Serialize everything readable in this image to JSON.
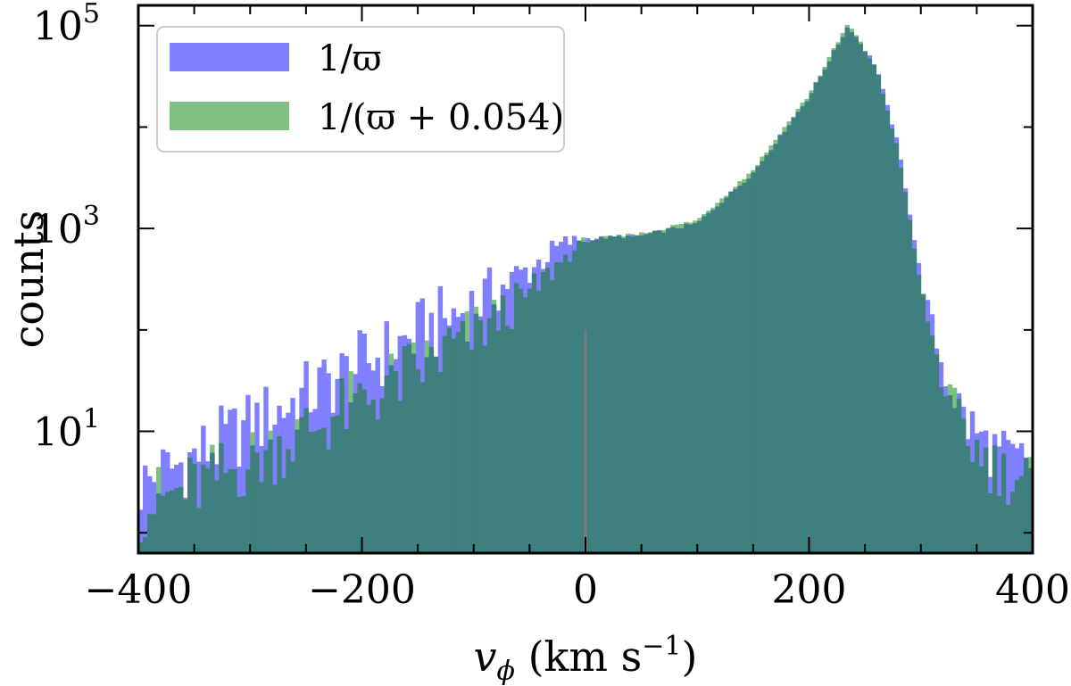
{
  "chart_data": {
    "type": "bar",
    "title": "",
    "xlabel_parts": {
      "main": "v",
      "sub": "ϕ",
      "unit": " (km s",
      "sup": "−1",
      "close": ")"
    },
    "ylabel": "counts",
    "xlim": [
      -400,
      400
    ],
    "ylim_log10": [
      -0.2,
      5.2
    ],
    "y_scale": "log",
    "grid": false,
    "legend_position": "top-left",
    "x_ticks": [
      -400,
      -200,
      0,
      200,
      400
    ],
    "x_tick_labels": [
      "−400",
      "−200",
      "0",
      "200",
      "400"
    ],
    "y_ticks": [
      10,
      1000,
      100000
    ],
    "y_tick_labels": [
      {
        "base": "10",
        "exp": "1"
      },
      {
        "base": "10",
        "exp": "3"
      },
      {
        "base": "10",
        "exp": "5"
      }
    ],
    "bin_width_kmps": 4,
    "series": [
      {
        "name": "1/ϖ",
        "color": "#7f7fff",
        "profile_kmps_log10": [
          [
            -400,
            0.45
          ],
          [
            -350,
            0.75
          ],
          [
            -300,
            1.05
          ],
          [
            -250,
            1.35
          ],
          [
            -200,
            1.65
          ],
          [
            -150,
            1.95
          ],
          [
            -100,
            2.25
          ],
          [
            -50,
            2.6
          ],
          [
            -20,
            2.85
          ],
          [
            0,
            2.9
          ],
          [
            50,
            2.93
          ],
          [
            100,
            3.05
          ],
          [
            150,
            3.55
          ],
          [
            200,
            4.3
          ],
          [
            235,
            5.0
          ],
          [
            260,
            4.6
          ],
          [
            280,
            3.8
          ],
          [
            300,
            2.5
          ],
          [
            320,
            1.6
          ],
          [
            340,
            1.1
          ],
          [
            360,
            0.85
          ],
          [
            380,
            0.7
          ],
          [
            400,
            0.7
          ]
        ]
      },
      {
        "name": "1/(ϖ + 0.054)",
        "color": "#7fbf7f",
        "profile_kmps_log10": [
          [
            -400,
            0.25
          ],
          [
            -350,
            0.45
          ],
          [
            -300,
            0.7
          ],
          [
            -250,
            1.0
          ],
          [
            -200,
            1.3
          ],
          [
            -150,
            1.62
          ],
          [
            -100,
            1.95
          ],
          [
            -50,
            2.35
          ],
          [
            -20,
            2.7
          ],
          [
            0,
            2.88
          ],
          [
            50,
            2.95
          ],
          [
            100,
            3.08
          ],
          [
            150,
            3.58
          ],
          [
            200,
            4.32
          ],
          [
            235,
            5.02
          ],
          [
            260,
            4.58
          ],
          [
            280,
            3.75
          ],
          [
            300,
            2.4
          ],
          [
            320,
            1.45
          ],
          [
            340,
            0.95
          ],
          [
            360,
            0.7
          ],
          [
            380,
            0.55
          ],
          [
            400,
            0.55
          ]
        ]
      }
    ],
    "overlap_color": "#3f7f7f"
  }
}
